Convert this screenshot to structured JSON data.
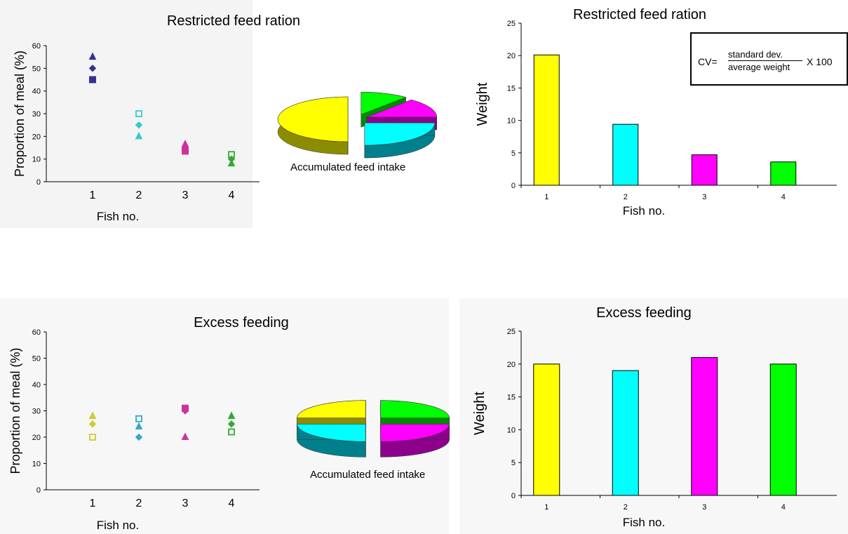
{
  "chart_data": [
    {
      "id": "scatter-restricted",
      "type": "scatter",
      "title": "Restricted feed ration",
      "xlabel": "Fish no.",
      "ylabel": "Proportion of meal (%)",
      "x_ticks": [
        "1",
        "2",
        "3",
        "4"
      ],
      "y_ticks": [
        "0",
        "10",
        "20",
        "30",
        "40",
        "50",
        "60"
      ],
      "ylim": [
        0,
        60
      ],
      "points": [
        {
          "x": 1,
          "y": 55,
          "marker": "triangle",
          "color": "#33338f"
        },
        {
          "x": 1,
          "y": 50,
          "marker": "diamond",
          "color": "#33338f"
        },
        {
          "x": 1,
          "y": 45,
          "marker": "square",
          "color": "#33338f"
        },
        {
          "x": 2,
          "y": 30,
          "marker": "square-open",
          "color": "#33cccc"
        },
        {
          "x": 2,
          "y": 25,
          "marker": "diamond",
          "color": "#33cccc"
        },
        {
          "x": 2,
          "y": 20,
          "marker": "triangle",
          "color": "#33cccc"
        },
        {
          "x": 3,
          "y": 16.5,
          "marker": "triangle",
          "color": "#cc3399"
        },
        {
          "x": 3,
          "y": 15,
          "marker": "diamond",
          "color": "#cc3399"
        },
        {
          "x": 3,
          "y": 13.5,
          "marker": "square",
          "color": "#cc3399"
        },
        {
          "x": 4,
          "y": 12,
          "marker": "square-open",
          "color": "#33aa33"
        },
        {
          "x": 4,
          "y": 10,
          "marker": "diamond",
          "color": "#33aa33"
        },
        {
          "x": 4,
          "y": 8,
          "marker": "triangle",
          "color": "#33aa33"
        }
      ],
      "pie": {
        "caption": "Accumulated feed intake",
        "slices": [
          {
            "value": 50,
            "color": "#ffff00",
            "dark": "#8c8c00"
          },
          {
            "value": 25,
            "color": "#00ffff",
            "dark": "#00808c"
          },
          {
            "value": 14,
            "color": "#ff00ff",
            "dark": "#8c008c"
          },
          {
            "value": 11,
            "color": "#00ff00",
            "dark": "#008c00"
          }
        ]
      }
    },
    {
      "id": "bar-restricted",
      "type": "bar",
      "title": "Restricted feed ration",
      "xlabel": "Fish no.",
      "ylabel": "Weight",
      "categories": [
        "1",
        "2",
        "3",
        "4"
      ],
      "values": [
        20.1,
        9.4,
        4.7,
        3.6
      ],
      "colors": [
        "#ffff00",
        "#00ffff",
        "#ff00ff",
        "#00ff00"
      ],
      "y_ticks": [
        "0",
        "5",
        "10",
        "15",
        "20",
        "25"
      ],
      "ylim": [
        0,
        25
      ],
      "annotation": {
        "lhs": "CV=",
        "numerator": "standard dev.",
        "denominator": "average weight",
        "multiplier": "X 100"
      }
    },
    {
      "id": "scatter-excess",
      "type": "scatter",
      "title": "Excess feeding",
      "xlabel": "Fish no.",
      "ylabel": "Proportion of meal (%)",
      "x_ticks": [
        "1",
        "2",
        "3",
        "4"
      ],
      "y_ticks": [
        "0",
        "10",
        "20",
        "30",
        "40",
        "50",
        "60"
      ],
      "ylim": [
        0,
        60
      ],
      "points": [
        {
          "x": 1,
          "y": 28,
          "marker": "triangle",
          "color": "#cccc33"
        },
        {
          "x": 1,
          "y": 25,
          "marker": "diamond",
          "color": "#cccc33"
        },
        {
          "x": 1,
          "y": 20,
          "marker": "square-open",
          "color": "#cccc33"
        },
        {
          "x": 2,
          "y": 27,
          "marker": "square-open",
          "color": "#33aacc"
        },
        {
          "x": 2,
          "y": 24,
          "marker": "triangle",
          "color": "#33aacc"
        },
        {
          "x": 2,
          "y": 20,
          "marker": "diamond",
          "color": "#33aacc"
        },
        {
          "x": 3,
          "y": 31,
          "marker": "square",
          "color": "#cc3399"
        },
        {
          "x": 3,
          "y": 30,
          "marker": "diamond",
          "color": "#cc3399"
        },
        {
          "x": 3,
          "y": 20,
          "marker": "triangle",
          "color": "#cc3399"
        },
        {
          "x": 4,
          "y": 28,
          "marker": "triangle",
          "color": "#33aa33"
        },
        {
          "x": 4,
          "y": 25,
          "marker": "diamond",
          "color": "#33aa33"
        },
        {
          "x": 4,
          "y": 22,
          "marker": "square-open",
          "color": "#33aa33"
        }
      ],
      "pie": {
        "caption": "Accumulated feed intake",
        "slices": [
          {
            "value": 25,
            "color": "#ffff00",
            "dark": "#8c8c00"
          },
          {
            "value": 25,
            "color": "#00ffff",
            "dark": "#00808c"
          },
          {
            "value": 25,
            "color": "#ff00ff",
            "dark": "#8c008c"
          },
          {
            "value": 25,
            "color": "#00ff00",
            "dark": "#008c00"
          }
        ]
      }
    },
    {
      "id": "bar-excess",
      "type": "bar",
      "title": "Excess feeding",
      "xlabel": "Fish no.",
      "ylabel": "Weight",
      "categories": [
        "1",
        "2",
        "3",
        "4"
      ],
      "values": [
        20,
        19,
        21,
        20
      ],
      "colors": [
        "#ffff00",
        "#00ffff",
        "#ff00ff",
        "#00ff00"
      ],
      "y_ticks": [
        "0",
        "5",
        "10",
        "15",
        "20",
        "25"
      ],
      "ylim": [
        0,
        25
      ]
    }
  ]
}
